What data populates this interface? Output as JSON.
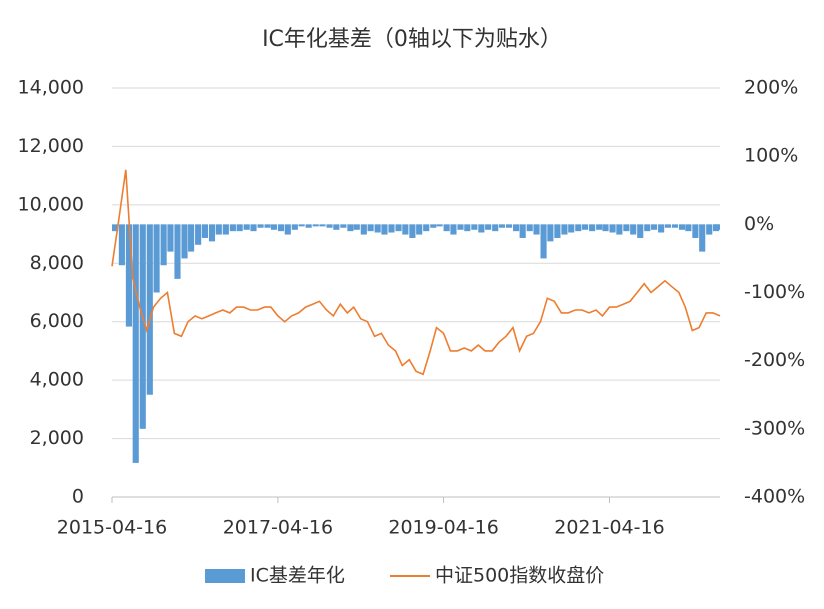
{
  "chart_data": {
    "type": "bar-line",
    "title": "IC年化基差（0轴以下为贴水）",
    "x": [
      "2015-04-16",
      "2015-05-16",
      "2015-06-16",
      "2015-07-16",
      "2015-08-16",
      "2015-09-16",
      "2015-10-16",
      "2015-11-16",
      "2015-12-16",
      "2016-01-16",
      "2016-02-16",
      "2016-03-16",
      "2016-04-16",
      "2016-05-16",
      "2016-06-16",
      "2016-07-16",
      "2016-08-16",
      "2016-09-16",
      "2016-10-16",
      "2016-11-16",
      "2016-12-16",
      "2017-01-16",
      "2017-02-16",
      "2017-03-16",
      "2017-04-16",
      "2017-05-16",
      "2017-06-16",
      "2017-07-16",
      "2017-08-16",
      "2017-09-16",
      "2017-10-16",
      "2017-11-16",
      "2017-12-16",
      "2018-01-16",
      "2018-02-16",
      "2018-03-16",
      "2018-04-16",
      "2018-05-16",
      "2018-06-16",
      "2018-07-16",
      "2018-08-16",
      "2018-09-16",
      "2018-10-16",
      "2018-11-16",
      "2018-12-16",
      "2019-01-16",
      "2019-02-16",
      "2019-03-16",
      "2019-04-16",
      "2019-05-16",
      "2019-06-16",
      "2019-07-16",
      "2019-08-16",
      "2019-09-16",
      "2019-10-16",
      "2019-11-16",
      "2019-12-16",
      "2020-01-16",
      "2020-02-16",
      "2020-03-16",
      "2020-04-16",
      "2020-05-16",
      "2020-06-16",
      "2020-07-16",
      "2020-08-16",
      "2020-09-16",
      "2020-10-16",
      "2020-11-16",
      "2020-12-16",
      "2021-01-16",
      "2021-02-16",
      "2021-03-16",
      "2021-04-16",
      "2021-05-16",
      "2021-06-16",
      "2021-07-16",
      "2021-08-16",
      "2021-09-16",
      "2021-10-16",
      "2021-11-16",
      "2021-12-16",
      "2022-01-16",
      "2022-02-16",
      "2022-03-16",
      "2022-04-16",
      "2022-05-16",
      "2022-06-16",
      "2022-07-16",
      "2022-08-16"
    ],
    "series": [
      {
        "name": "IC基差年化",
        "color": "#5b9bd5",
        "axis": "y2",
        "values": [
          -10,
          -60,
          -150,
          -350,
          -300,
          -250,
          -100,
          -60,
          -40,
          -80,
          -50,
          -40,
          -30,
          -20,
          -25,
          -15,
          -15,
          -10,
          -10,
          -8,
          -10,
          -5,
          -5,
          -8,
          -10,
          -15,
          -8,
          -3,
          -5,
          -3,
          -3,
          -5,
          -8,
          -5,
          -10,
          -8,
          -15,
          -10,
          -12,
          -15,
          -12,
          -10,
          -15,
          -20,
          -15,
          -10,
          -5,
          -3,
          -10,
          -15,
          -8,
          -10,
          -8,
          -12,
          -8,
          -10,
          -5,
          -5,
          -10,
          -20,
          -10,
          -15,
          -50,
          -25,
          -20,
          -15,
          -12,
          -10,
          -8,
          -10,
          -8,
          -10,
          -12,
          -15,
          -10,
          -15,
          -20,
          -10,
          -8,
          -12,
          -5,
          -5,
          -8,
          -10,
          -20,
          -40,
          -15,
          -10,
          -8
        ]
      },
      {
        "name": "中证500指数收盘价",
        "color": "#ed7d31",
        "values": [
          7900,
          9500,
          11200,
          7500,
          6500,
          5700,
          6500,
          6800,
          7000,
          5600,
          5500,
          6000,
          6200,
          6100,
          6200,
          6300,
          6400,
          6300,
          6500,
          6500,
          6400,
          6400,
          6500,
          6500,
          6200,
          6000,
          6200,
          6300,
          6500,
          6600,
          6700,
          6400,
          6200,
          6600,
          6300,
          6500,
          6100,
          6000,
          5500,
          5600,
          5200,
          5000,
          4500,
          4700,
          4300,
          4200,
          5000,
          5800,
          5600,
          5000,
          5000,
          5100,
          5000,
          5200,
          5000,
          5000,
          5300,
          5500,
          5800,
          5000,
          5500,
          5600,
          6000,
          6800,
          6700,
          6300,
          6300,
          6400,
          6400,
          6300,
          6400,
          6200,
          6500,
          6500,
          6600,
          6700,
          7000,
          7300,
          7000,
          7200,
          7400,
          7200,
          7000,
          6500,
          5700,
          5800,
          6300,
          6300,
          6200
        ]
      }
    ],
    "xlim": [
      "2015-04-16",
      "2022-08-16"
    ],
    "xticks": [
      "2015-04-16",
      "2017-04-16",
      "2019-04-16",
      "2021-04-16"
    ],
    "ylim": [
      0,
      14000
    ],
    "yticks": [
      0,
      {
        "value": 2000,
        "label": "2,000"
      },
      {
        "value": 4000,
        "label": "4,000"
      },
      {
        "value": 6000,
        "label": "6,000"
      },
      {
        "value": 8000,
        "label": "8,000"
      },
      {
        "value": 10000,
        "label": "10,000"
      },
      {
        "value": 12000,
        "label": "12,000"
      },
      {
        "value": 14000,
        "label": "14,000"
      }
    ],
    "y2lim": [
      -400,
      200
    ],
    "y2ticks": [
      {
        "value": -400,
        "label": "-400%"
      },
      {
        "value": -300,
        "label": "-300%"
      },
      {
        "value": -200,
        "label": "-200%"
      },
      {
        "value": -100,
        "label": "-100%"
      },
      {
        "value": 0,
        "label": "0%"
      },
      {
        "value": 100,
        "label": "100%"
      },
      {
        "value": 200,
        "label": "200%"
      }
    ],
    "grid": true,
    "legend": "bottom"
  }
}
